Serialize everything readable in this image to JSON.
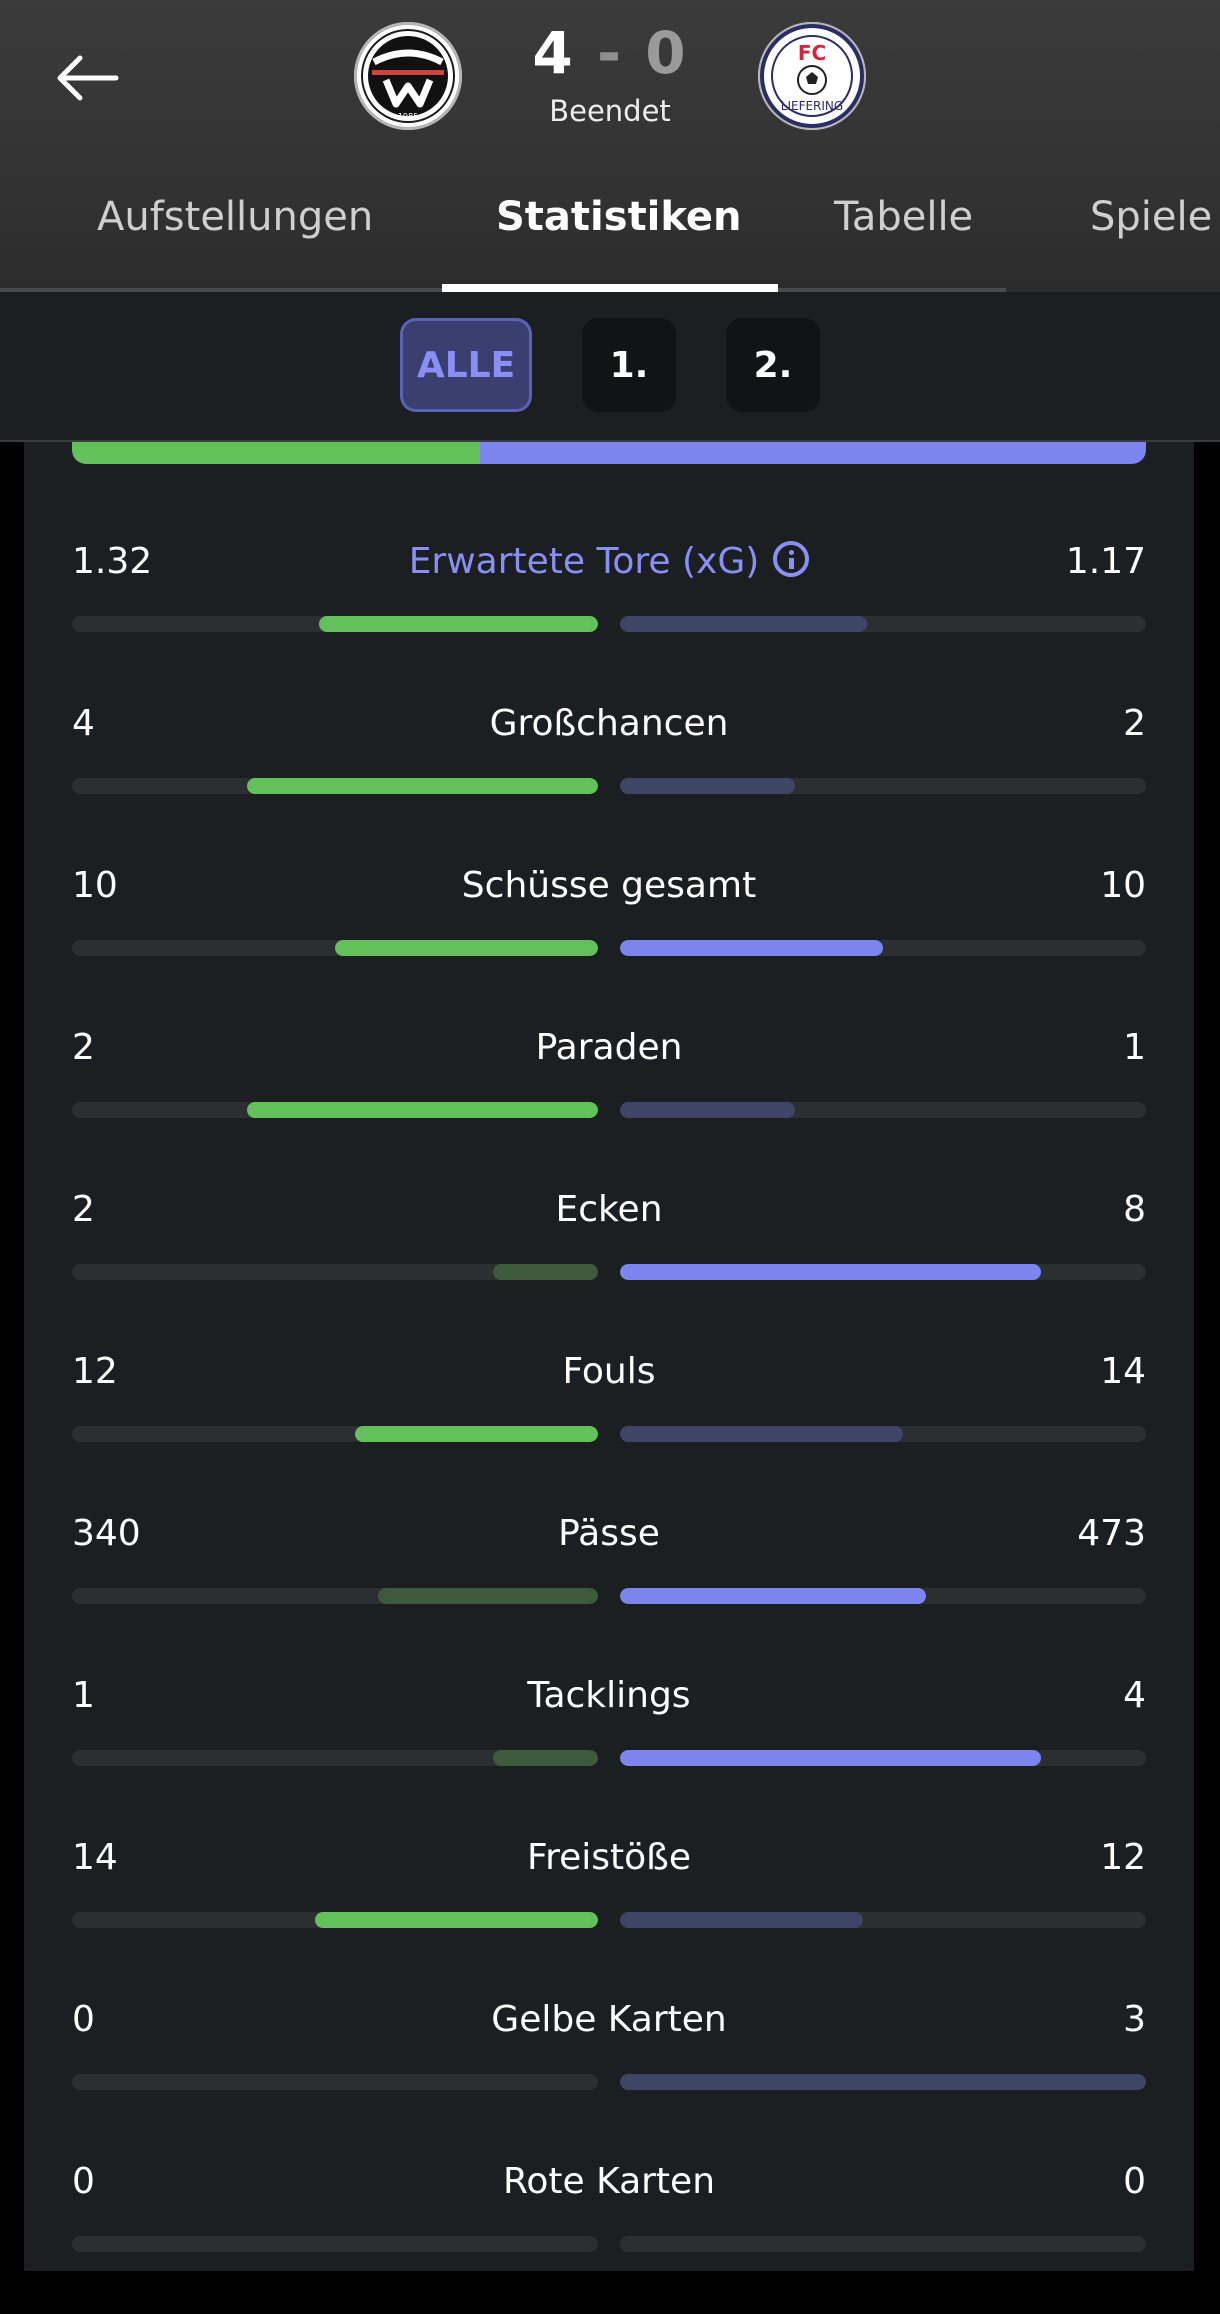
{
  "header": {
    "score_home": "4",
    "score_sep": "-",
    "score_away": "0",
    "status": "Beendet",
    "home_crest": "home-team-crest",
    "away_crest": "away-team-crest",
    "away_crest_text_top": "FC",
    "away_crest_text_ring": "LIEFERING",
    "home_crest_text": "1985"
  },
  "tabs": [
    "Aufstellungen",
    "Statistiken",
    "Tabelle",
    "Spiele"
  ],
  "active_tab": "Statistiken",
  "filters": [
    "ALLE",
    "1.",
    "2."
  ],
  "active_filter": "ALLE",
  "colors": {
    "home": "#62c15a",
    "home_dim": "#3e5a3d",
    "away": "#7c84ee",
    "away_dim": "#3f4566",
    "track": "#2b2f32",
    "accent": "#8a8ff5"
  },
  "possession": {
    "home_fraction": 0.38,
    "away_fraction": 0.62
  },
  "stats": [
    {
      "label": "Erwartete Tore (xG)",
      "home": "1.32",
      "away": "1.17",
      "home_share": 0.53,
      "away_share": 0.47,
      "home_leads": true,
      "info": true
    },
    {
      "label": "Großchancen",
      "home": "4",
      "away": "2",
      "home_share": 0.667,
      "away_share": 0.333,
      "home_leads": true
    },
    {
      "label": "Schüsse gesamt",
      "home": "10",
      "away": "10",
      "home_share": 0.5,
      "away_share": 0.5,
      "home_leads": true,
      "away_leads": true
    },
    {
      "label": "Paraden",
      "home": "2",
      "away": "1",
      "home_share": 0.667,
      "away_share": 0.333,
      "home_leads": true
    },
    {
      "label": "Ecken",
      "home": "2",
      "away": "8",
      "home_share": 0.2,
      "away_share": 0.8,
      "away_leads": true
    },
    {
      "label": "Fouls",
      "home": "12",
      "away": "14",
      "home_share": 0.462,
      "away_share": 0.538,
      "home_leads": true
    },
    {
      "label": "Pässe",
      "home": "340",
      "away": "473",
      "home_share": 0.418,
      "away_share": 0.582,
      "away_leads": true
    },
    {
      "label": "Tacklings",
      "home": "1",
      "away": "4",
      "home_share": 0.2,
      "away_share": 0.8,
      "away_leads": true
    },
    {
      "label": "Freistöße",
      "home": "14",
      "away": "12",
      "home_share": 0.538,
      "away_share": 0.462,
      "home_leads": true
    },
    {
      "label": "Gelbe Karten",
      "home": "0",
      "away": "3",
      "home_share": 0,
      "away_share": 1,
      "away_leads": false
    },
    {
      "label": "Rote Karten",
      "home": "0",
      "away": "0",
      "home_share": 0,
      "away_share": 0
    }
  ]
}
